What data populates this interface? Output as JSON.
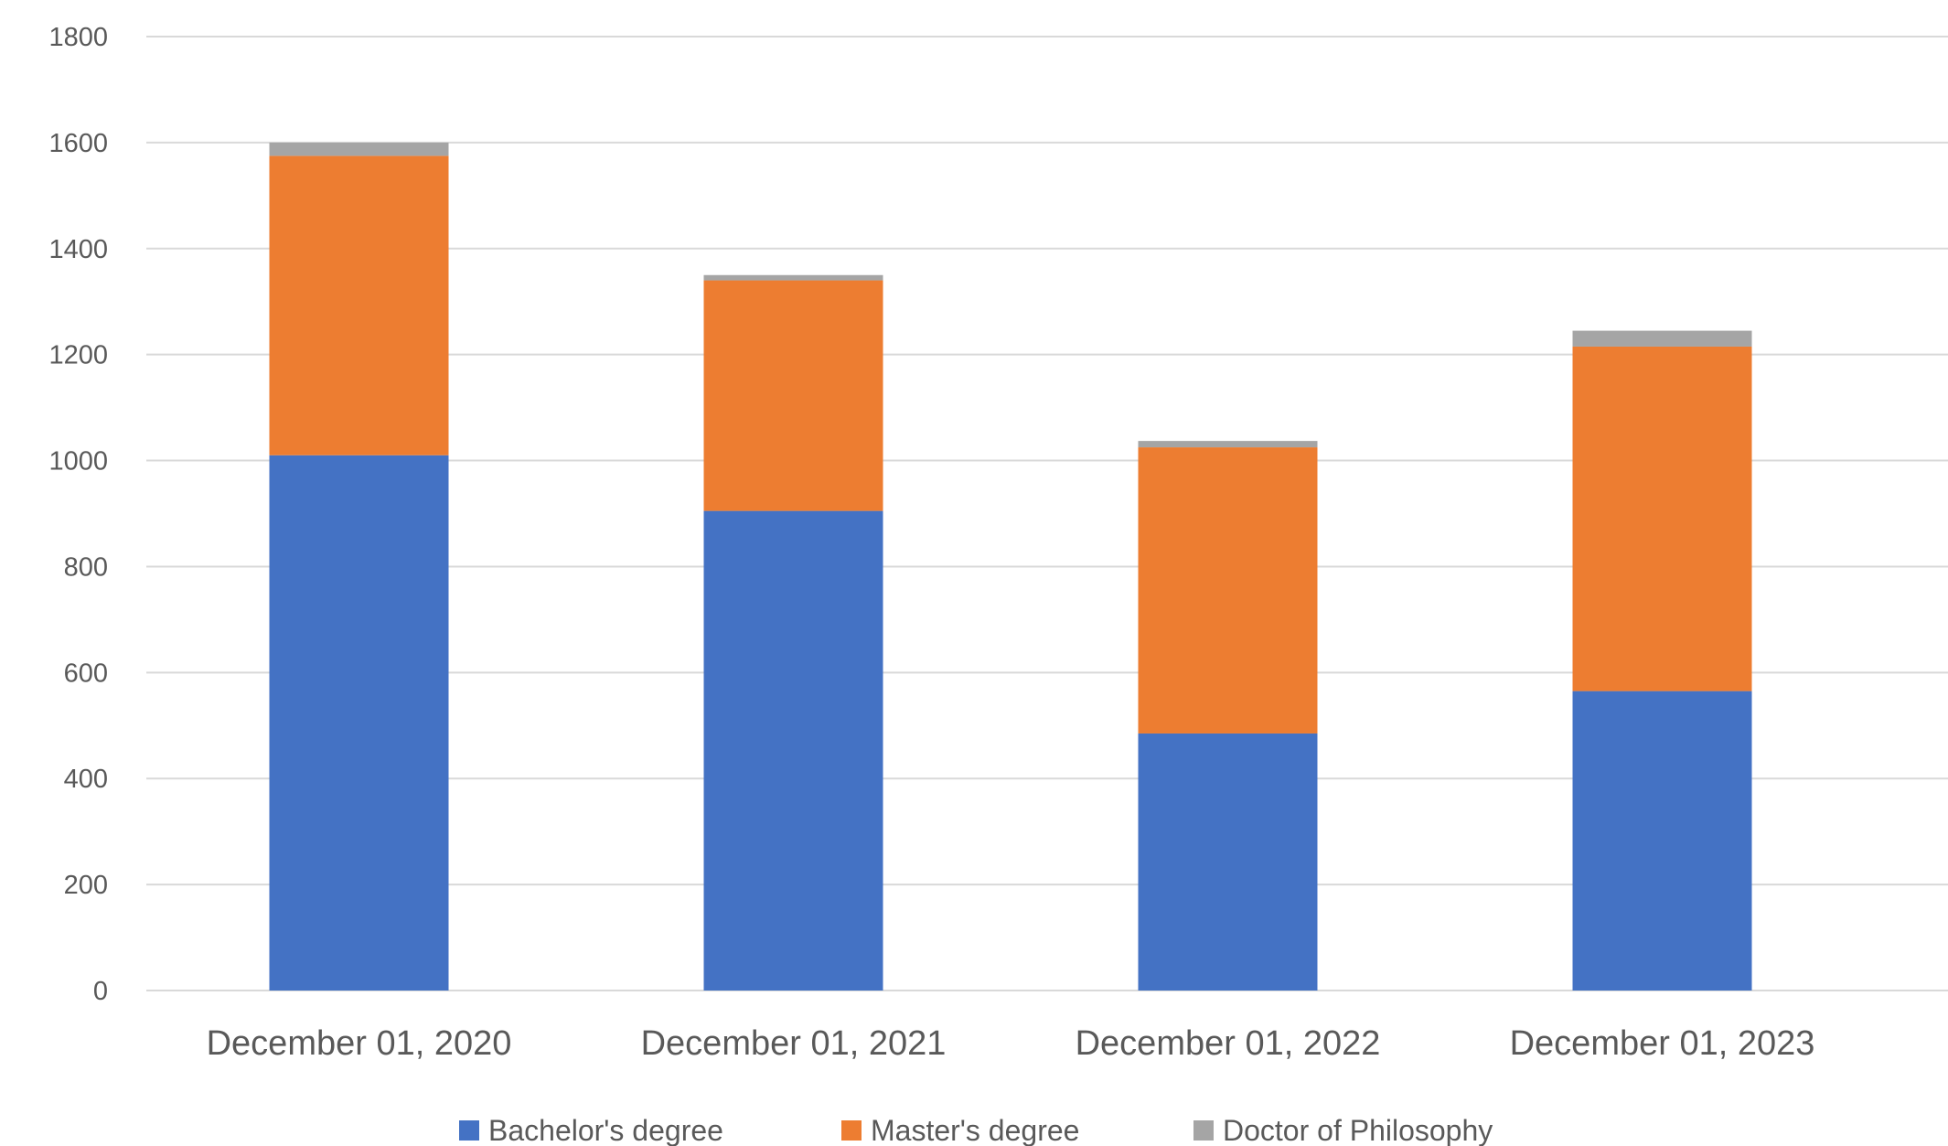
{
  "chart_data": {
    "type": "bar",
    "stacked": true,
    "title": "",
    "xlabel": "",
    "ylabel": "",
    "categories": [
      "December 01, 2020",
      "December 01, 2021",
      "December 01, 2022",
      "December 01, 2023"
    ],
    "series": [
      {
        "name": "Bachelor's degree",
        "color": "#4472C4",
        "values": [
          1010,
          905,
          485,
          565
        ]
      },
      {
        "name": "Master's degree",
        "color": "#ED7D31",
        "values": [
          565,
          435,
          540,
          650
        ]
      },
      {
        "name": "Doctor of Philosophy",
        "color": "#A5A5A5",
        "values": [
          25,
          10,
          12,
          30
        ]
      }
    ],
    "ylim": [
      0,
      1800
    ],
    "yticks": [
      "0",
      "200",
      "400",
      "600",
      "800",
      "1000",
      "1200",
      "1400",
      "1600",
      "1800"
    ],
    "grid": true,
    "legend_position": "bottom",
    "colors": {
      "grid": "#D9D9D9",
      "text": "#595959"
    }
  }
}
